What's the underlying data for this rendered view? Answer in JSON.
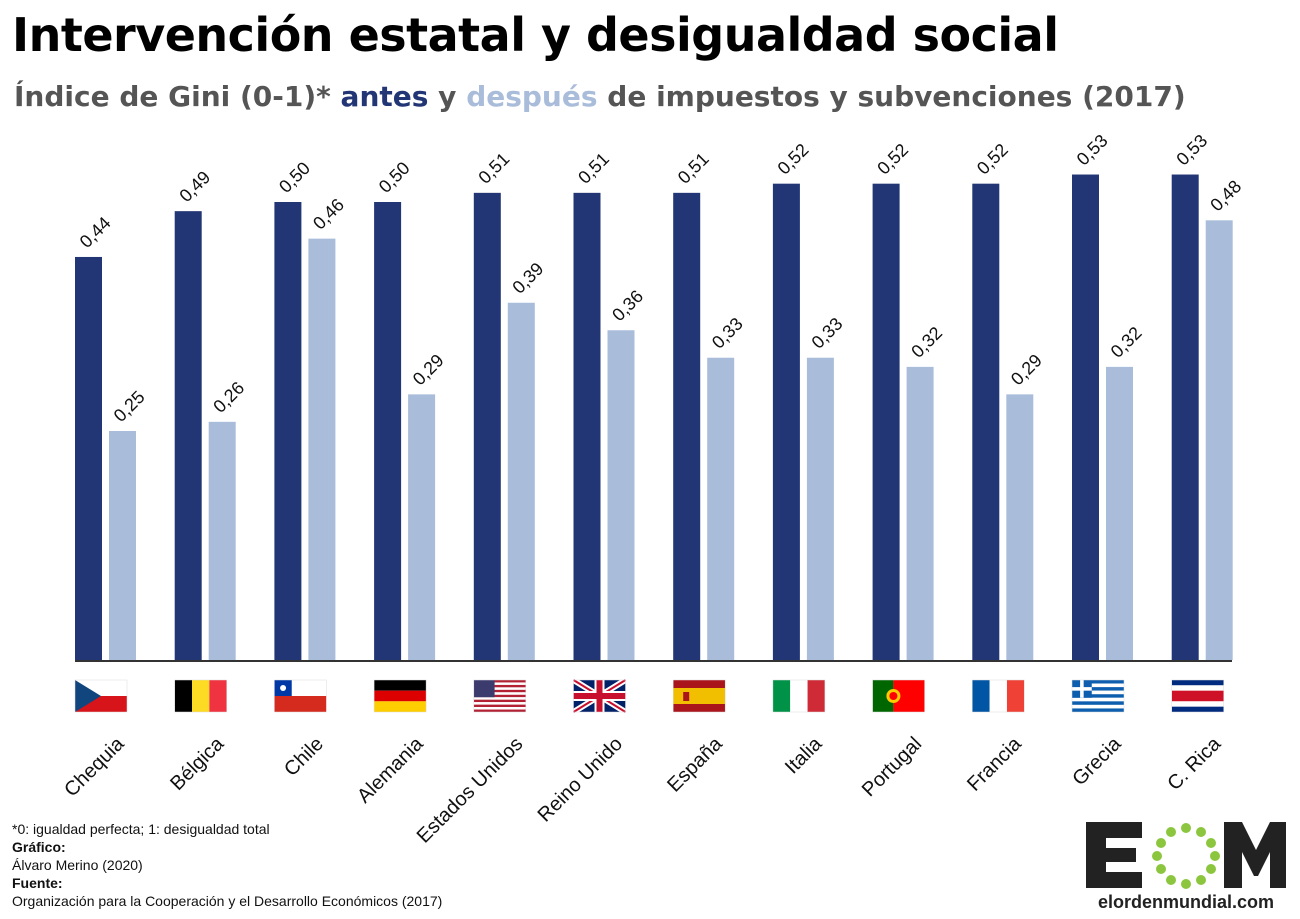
{
  "title": "Intervención estatal y desigualdad social",
  "subtitle": {
    "prefix": "Índice de Gini (0-1)*",
    "antes": "antes",
    "y": "y",
    "despues": "después",
    "suffix": "de impuestos y subvenciones (2017)"
  },
  "colors": {
    "antes": "#223575",
    "despues": "#a9bddb",
    "axis": "#333333"
  },
  "chart_data": {
    "type": "bar",
    "categories": [
      "Chequia",
      "Bélgica",
      "Chile",
      "Alemania",
      "Estados Unidos",
      "Reino Unido",
      "España",
      "Italia",
      "Portugal",
      "Francia",
      "Grecia",
      "C. Rica"
    ],
    "flags": [
      "flag-czech-icon",
      "flag-belgium-icon",
      "flag-chile-icon",
      "flag-germany-icon",
      "flag-usa-icon",
      "flag-uk-icon",
      "flag-spain-icon",
      "flag-italy-icon",
      "flag-portugal-icon",
      "flag-france-icon",
      "flag-greece-icon",
      "flag-costa-rica-icon"
    ],
    "series": [
      {
        "name": "antes",
        "values": [
          0.44,
          0.49,
          0.5,
          0.5,
          0.51,
          0.51,
          0.51,
          0.52,
          0.52,
          0.52,
          0.53,
          0.53
        ],
        "labels": [
          "0,44",
          "0,49",
          "0,50",
          "0,50",
          "0,51",
          "0,51",
          "0,51",
          "0,52",
          "0,52",
          "0,52",
          "0,53",
          "0,53"
        ]
      },
      {
        "name": "después",
        "values": [
          0.25,
          0.26,
          0.46,
          0.29,
          0.39,
          0.36,
          0.33,
          0.33,
          0.32,
          0.29,
          0.32,
          0.48
        ],
        "labels": [
          "0,25",
          "0,26",
          "0,46",
          "0,29",
          "0,39",
          "0,36",
          "0,33",
          "0,33",
          "0,32",
          "0,29",
          "0,32",
          "0,48"
        ]
      }
    ],
    "ylim": [
      0,
      0.55
    ],
    "grid": false,
    "legend": "in subtitle"
  },
  "footnote": {
    "note": "*0: igualdad perfecta; 1: desigualdad total",
    "grafico_label": "Gráfico:",
    "grafico_value": "Álvaro Merino (2020)",
    "fuente_label": "Fuente:",
    "fuente_value": "Organización para la Cooperación y el Desarrollo Económicos (2017)"
  },
  "logo": {
    "mark": "EOM",
    "text": "elordenmundial.com"
  }
}
